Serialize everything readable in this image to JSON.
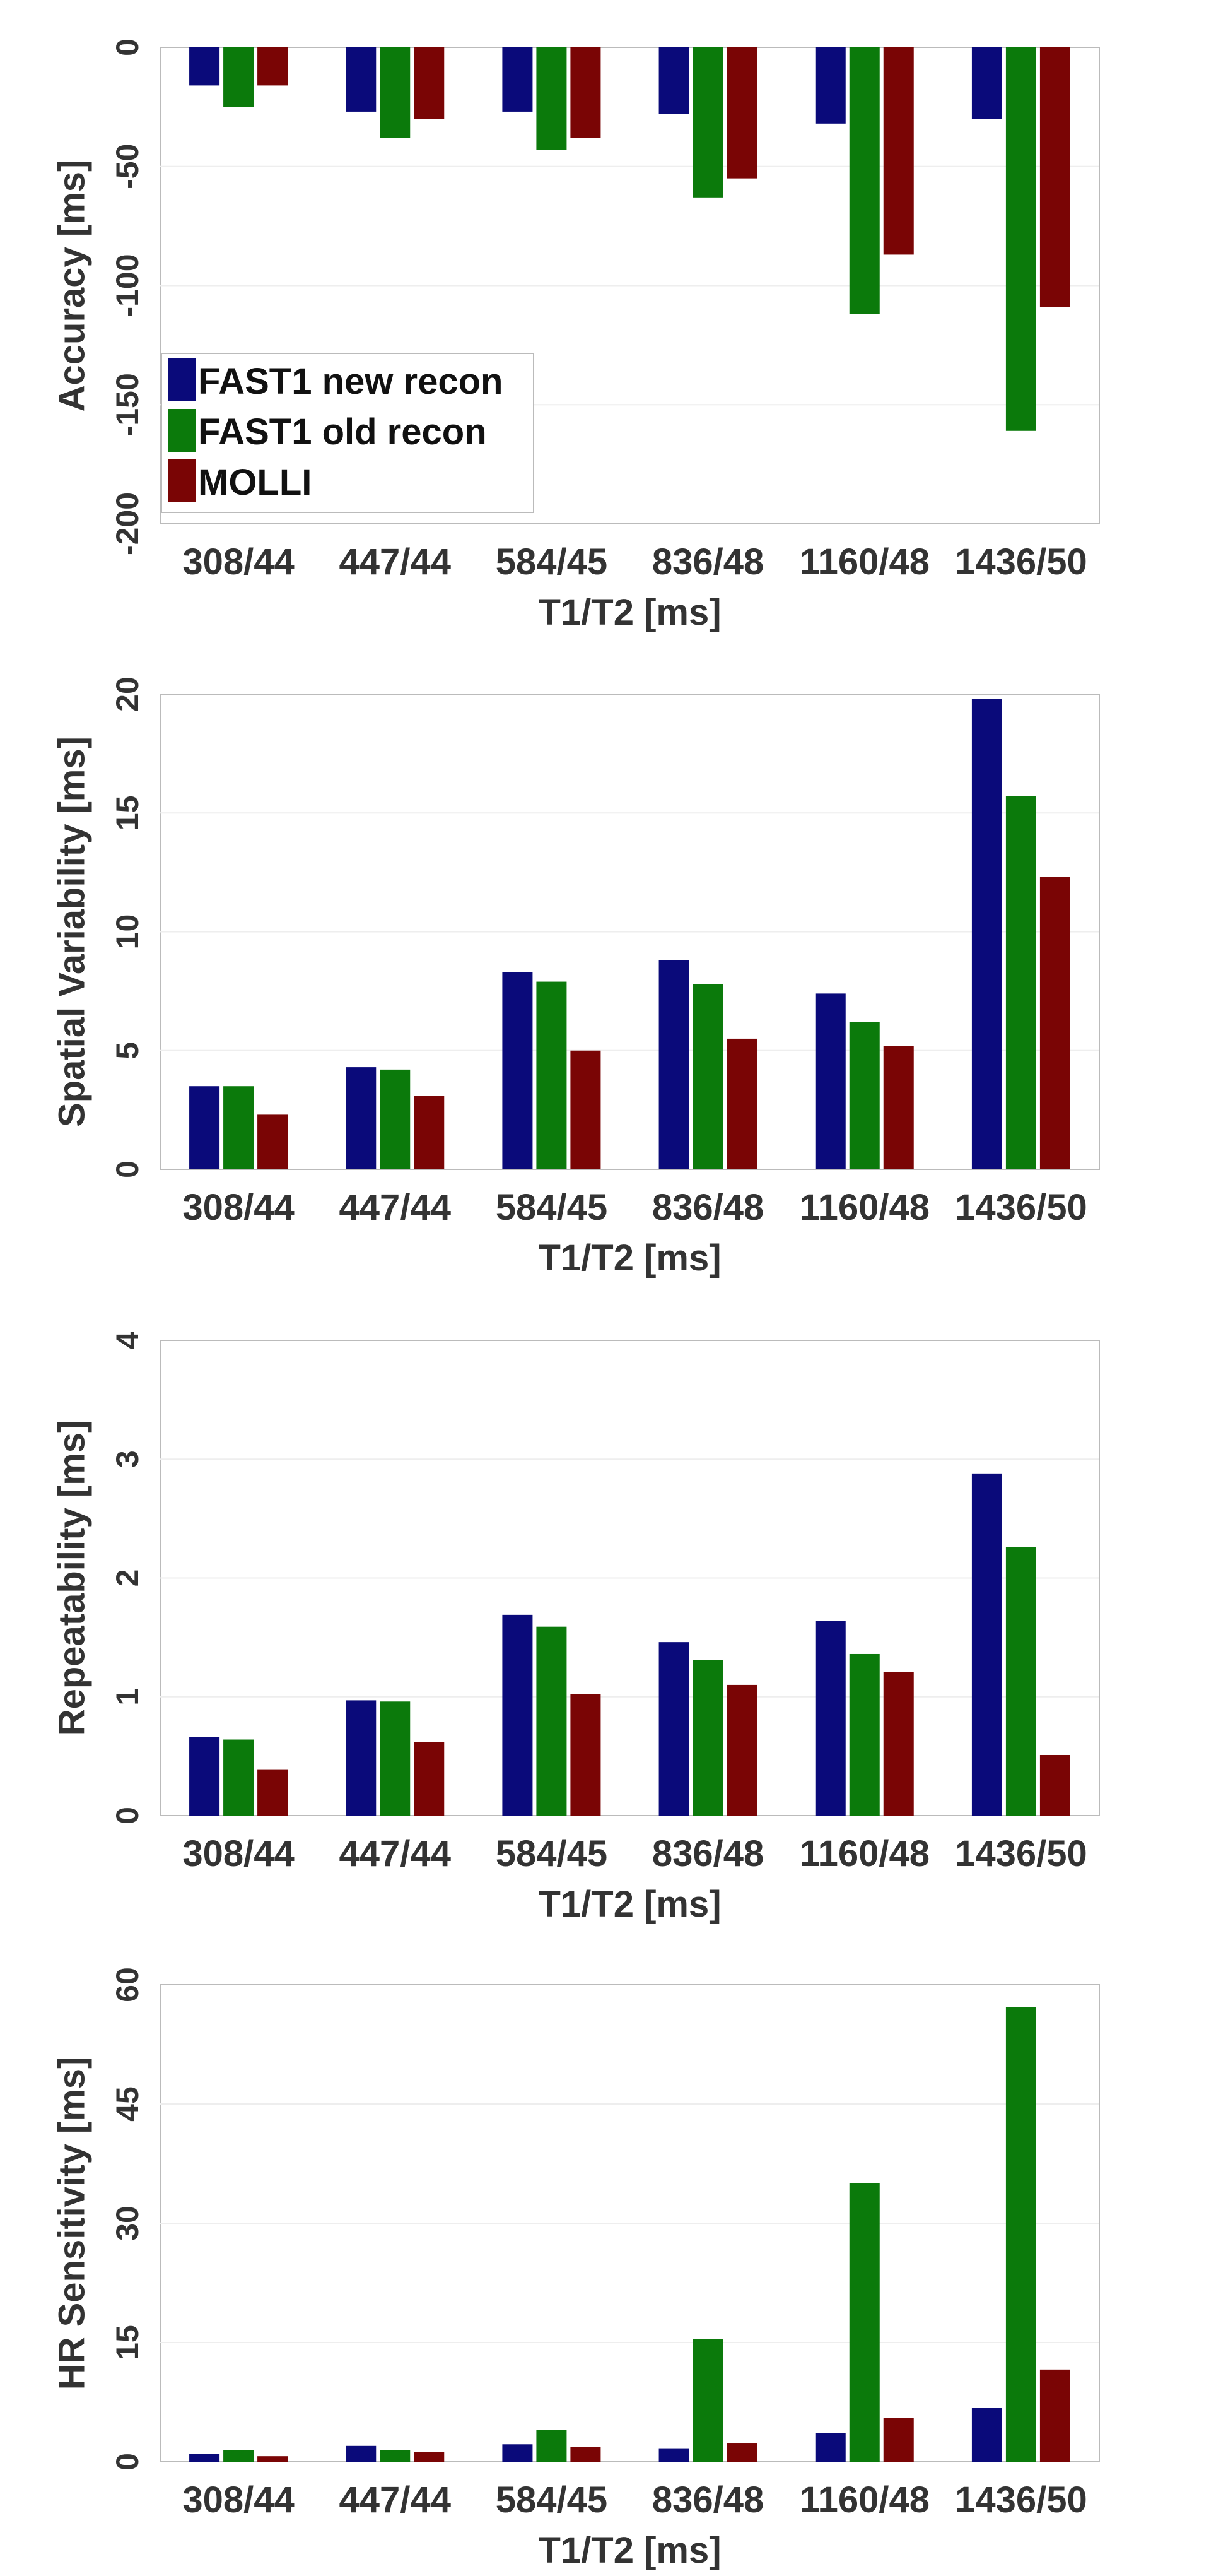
{
  "colors": {
    "series": [
      "#0a0a7a",
      "#0b7a0b",
      "#7a0505"
    ],
    "frame": "#bbbbbb",
    "grid": "#eeeeee",
    "text": "#333333"
  },
  "chart_data": [
    {
      "type": "bar",
      "title": "",
      "xlabel": "T1/T2 [ms]",
      "ylabel": "Accuracy [ms]",
      "ylim": [
        -200,
        0
      ],
      "yticks": [
        0,
        -50,
        -100,
        -150,
        -200
      ],
      "yticklabels": [
        "0",
        "-50",
        "-100",
        "-150",
        "-200"
      ],
      "categories": [
        "308/44",
        "447/44",
        "584/45",
        "836/48",
        "1160/48",
        "1436/50"
      ],
      "legend": {
        "position": "bottom-left",
        "entries": [
          "FAST1 new recon",
          "FAST1 old recon",
          "MOLLI"
        ]
      },
      "series": [
        {
          "name": "FAST1 new recon",
          "values": [
            -16,
            -27,
            -27,
            -28,
            -32,
            -30
          ]
        },
        {
          "name": "FAST1 old recon",
          "values": [
            -25,
            -38,
            -43,
            -63,
            -112,
            -161
          ]
        },
        {
          "name": "MOLLI",
          "values": [
            -16,
            -30,
            -38,
            -55,
            -87,
            -109
          ]
        }
      ]
    },
    {
      "type": "bar",
      "title": "",
      "xlabel": "T1/T2 [ms]",
      "ylabel": "Spatial Variability [ms]",
      "ylim": [
        0,
        20
      ],
      "yticks": [
        0,
        5,
        10,
        15,
        20
      ],
      "yticklabels": [
        "0",
        "5",
        "10",
        "15",
        "20"
      ],
      "categories": [
        "308/44",
        "447/44",
        "584/45",
        "836/48",
        "1160/48",
        "1436/50"
      ],
      "series": [
        {
          "name": "FAST1 new recon",
          "values": [
            3.5,
            4.3,
            8.3,
            8.8,
            7.4,
            19.8
          ]
        },
        {
          "name": "FAST1 old recon",
          "values": [
            3.5,
            4.2,
            7.9,
            7.8,
            6.2,
            15.7
          ]
        },
        {
          "name": "MOLLI",
          "values": [
            2.3,
            3.1,
            5.0,
            5.5,
            5.2,
            12.3
          ]
        }
      ]
    },
    {
      "type": "bar",
      "title": "",
      "xlabel": "T1/T2 [ms]",
      "ylabel": "Repeatability [ms]",
      "ylim": [
        0,
        4
      ],
      "yticks": [
        0,
        1,
        2,
        3,
        4
      ],
      "yticklabels": [
        "0",
        "1",
        "2",
        "3",
        "4"
      ],
      "categories": [
        "308/44",
        "447/44",
        "584/45",
        "836/48",
        "1160/48",
        "1436/50"
      ],
      "series": [
        {
          "name": "FAST1 new recon",
          "values": [
            0.66,
            0.97,
            1.69,
            1.46,
            1.64,
            2.88
          ]
        },
        {
          "name": "FAST1 old recon",
          "values": [
            0.64,
            0.96,
            1.59,
            1.31,
            1.36,
            2.26
          ]
        },
        {
          "name": "MOLLI",
          "values": [
            0.39,
            0.62,
            1.02,
            1.1,
            1.21,
            0.51
          ]
        }
      ]
    },
    {
      "type": "bar",
      "title": "",
      "xlabel": "T1/T2 [ms]",
      "ylabel": "HR Sensitivity [ms]",
      "ylim": [
        0,
        60
      ],
      "yticks": [
        0,
        15,
        30,
        45,
        60
      ],
      "yticklabels": [
        "0",
        "15",
        "30",
        "45",
        "60"
      ],
      "categories": [
        "308/44",
        "447/44",
        "584/45",
        "836/48",
        "1160/48",
        "1436/50"
      ],
      "series": [
        {
          "name": "FAST1 new recon",
          "values": [
            1.0,
            2.0,
            2.2,
            1.7,
            3.6,
            6.8
          ]
        },
        {
          "name": "FAST1 old recon",
          "values": [
            1.5,
            1.5,
            4.0,
            15.4,
            35.0,
            57.2
          ]
        },
        {
          "name": "MOLLI",
          "values": [
            0.7,
            1.2,
            1.9,
            2.3,
            5.5,
            11.6
          ]
        }
      ]
    }
  ]
}
